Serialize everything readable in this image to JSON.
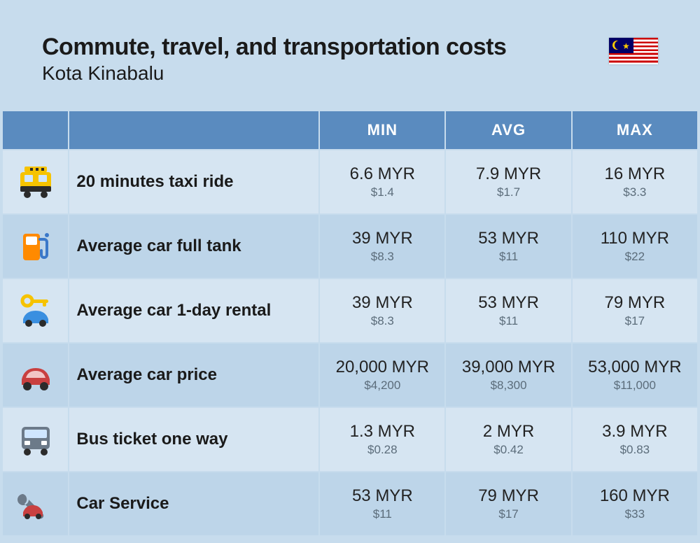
{
  "header": {
    "title": "Commute, travel, and transportation costs",
    "subtitle": "Kota Kinabalu"
  },
  "table": {
    "columns": [
      "MIN",
      "AVG",
      "MAX"
    ],
    "header_bg": "#5a8bbf",
    "row_bg_odd": "#d6e5f2",
    "row_bg_even": "#bdd5e9",
    "myr_fontsize": 24,
    "usd_fontsize": 17,
    "usd_color": "#5b6c7a",
    "label_fontsize": 24,
    "rows": [
      {
        "icon": "taxi",
        "label": "20 minutes taxi ride",
        "min_myr": "6.6 MYR",
        "min_usd": "$1.4",
        "avg_myr": "7.9 MYR",
        "avg_usd": "$1.7",
        "max_myr": "16 MYR",
        "max_usd": "$3.3"
      },
      {
        "icon": "fuel",
        "label": "Average car full tank",
        "min_myr": "39 MYR",
        "min_usd": "$8.3",
        "avg_myr": "53 MYR",
        "avg_usd": "$11",
        "max_myr": "110 MYR",
        "max_usd": "$22"
      },
      {
        "icon": "rental",
        "label": "Average car 1-day rental",
        "min_myr": "39 MYR",
        "min_usd": "$8.3",
        "avg_myr": "53 MYR",
        "avg_usd": "$11",
        "max_myr": "79 MYR",
        "max_usd": "$17"
      },
      {
        "icon": "car",
        "label": "Average car price",
        "min_myr": "20,000 MYR",
        "min_usd": "$4,200",
        "avg_myr": "39,000 MYR",
        "avg_usd": "$8,300",
        "max_myr": "53,000 MYR",
        "max_usd": "$11,000"
      },
      {
        "icon": "bus",
        "label": "Bus ticket one way",
        "min_myr": "1.3 MYR",
        "min_usd": "$0.28",
        "avg_myr": "2 MYR",
        "avg_usd": "$0.42",
        "max_myr": "3.9 MYR",
        "max_usd": "$0.83"
      },
      {
        "icon": "service",
        "label": "Car Service",
        "min_myr": "53 MYR",
        "min_usd": "$11",
        "avg_myr": "79 MYR",
        "avg_usd": "$17",
        "max_myr": "160 MYR",
        "max_usd": "$33"
      }
    ]
  },
  "icons": {
    "taxi": {
      "primary": "#f6c300",
      "accent": "#2b2b2b"
    },
    "fuel": {
      "primary": "#ff8a00",
      "accent": "#3a78c9"
    },
    "rental": {
      "primary": "#3a8fe0",
      "accent": "#f6c300"
    },
    "car": {
      "primary": "#c94040",
      "accent": "#2b2b2b"
    },
    "bus": {
      "primary": "#6c7a89",
      "accent": "#2b2b2b"
    },
    "service": {
      "primary": "#6c7a89",
      "accent": "#c94040"
    }
  }
}
